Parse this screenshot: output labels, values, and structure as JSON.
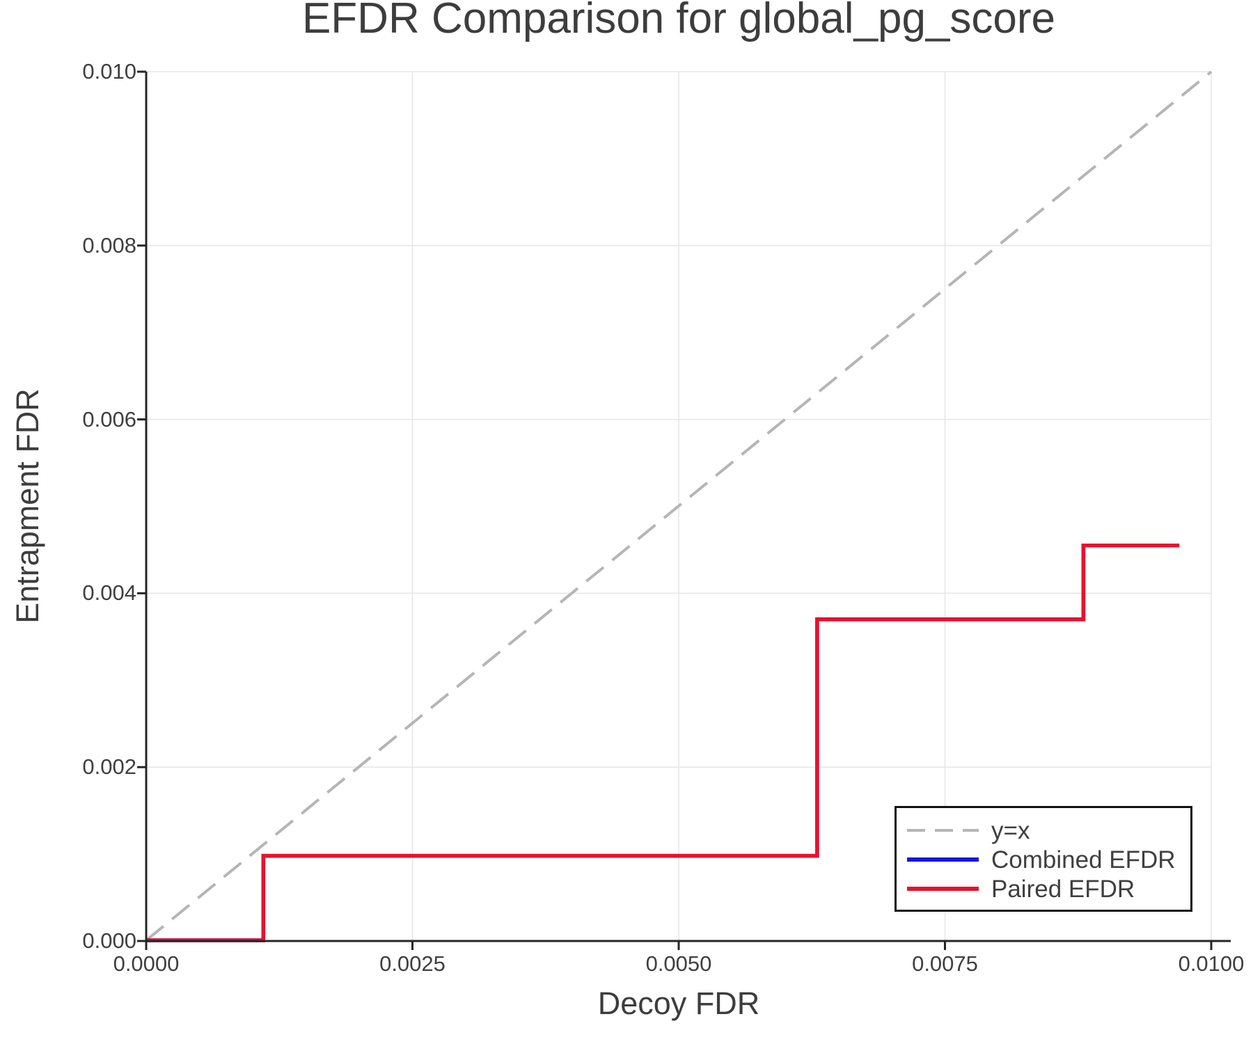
{
  "chart_data": {
    "type": "line",
    "title": "EFDR Comparison for global_pg_score",
    "xlabel": "Decoy FDR",
    "ylabel": "Entrapment FDR",
    "xlim": [
      0.0,
      0.01
    ],
    "ylim": [
      0.0,
      0.01
    ],
    "grid": true,
    "legend_position": "lower right",
    "x_ticks": {
      "values": [
        0.0,
        0.0025,
        0.005,
        0.0075,
        0.01
      ],
      "labels": [
        "0.0000",
        "0.0025",
        "0.0050",
        "0.0075",
        "0.0100"
      ]
    },
    "y_ticks": {
      "values": [
        0.0,
        0.002,
        0.004,
        0.006,
        0.008,
        0.01
      ],
      "labels": [
        "0.000",
        "0.002",
        "0.004",
        "0.006",
        "0.008",
        "0.010"
      ]
    },
    "series": [
      {
        "name": "y=x",
        "color": "#b5b5b5",
        "dashed": true,
        "line_width": 4,
        "x": [
          0.0,
          0.01
        ],
        "y": [
          0.0,
          0.01
        ]
      },
      {
        "name": "Combined EFDR",
        "color": "#1515e0",
        "dashed": false,
        "line_width": 5.5,
        "x": [
          0.0,
          0.0011,
          0.0011,
          0.0063,
          0.0063,
          0.0088,
          0.0088,
          0.0097
        ],
        "y": [
          0.0,
          0.0,
          0.00098,
          0.00098,
          0.0037,
          0.0037,
          0.00455,
          0.00455
        ]
      },
      {
        "name": "Paired EFDR",
        "color": "#e8112d",
        "dashed": false,
        "line_width": 5.5,
        "x": [
          0.0,
          0.0011,
          0.0011,
          0.0063,
          0.0063,
          0.0088,
          0.0088,
          0.0097
        ],
        "y": [
          0.0,
          0.0,
          0.00098,
          0.00098,
          0.0037,
          0.0037,
          0.00455,
          0.00455
        ]
      }
    ],
    "colors": {
      "axis": "#262626",
      "grid": "#e6e6e6",
      "text": "#3d3d3d",
      "legend_border": "#111111",
      "background": "#ffffff"
    }
  }
}
